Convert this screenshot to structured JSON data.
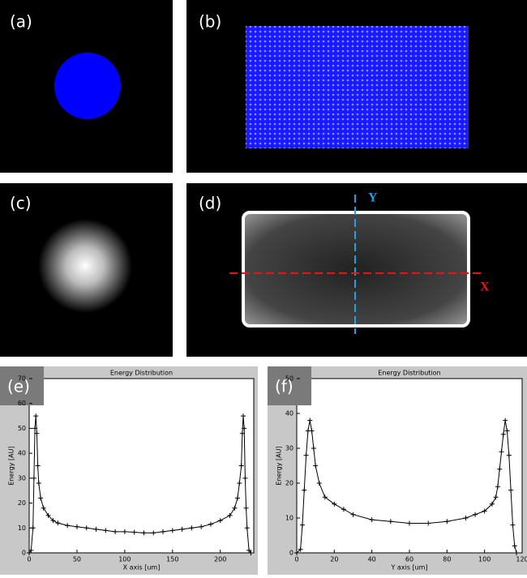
{
  "panels": [
    "(a)",
    "(b)",
    "(c)",
    "(d)"
  ],
  "annotations": {
    "y_line": "Y",
    "x_line": "X"
  },
  "chart_data": [
    {
      "type": "line",
      "panel_label": "(e)",
      "title": "Energy Distribution",
      "x_label": "X axis [um]",
      "y_label": "Energy [AU]",
      "x": [
        0,
        2,
        4,
        5,
        6,
        7,
        8,
        9,
        10,
        12,
        15,
        20,
        25,
        30,
        40,
        50,
        60,
        70,
        80,
        90,
        100,
        110,
        120,
        130,
        140,
        150,
        160,
        170,
        180,
        190,
        200,
        210,
        215,
        218,
        220,
        222,
        223,
        224,
        225,
        226,
        227,
        228,
        230,
        232
      ],
      "values": [
        0,
        1,
        10,
        30,
        50,
        55,
        48,
        35,
        28,
        22,
        18,
        15,
        13,
        12,
        11,
        10.5,
        10,
        9.5,
        9,
        8.5,
        8.5,
        8.3,
        8,
        8,
        8.5,
        9,
        9.5,
        10,
        10.5,
        11.5,
        13,
        15,
        18,
        22,
        28,
        35,
        48,
        55,
        50,
        30,
        18,
        10,
        1,
        0
      ],
      "color": "#000000",
      "xlim": [
        0,
        235
      ],
      "ylim": [
        0,
        70
      ],
      "xticks": [
        0,
        50,
        100,
        150,
        200
      ],
      "yticks": [
        0,
        10,
        20,
        30,
        40,
        50,
        60,
        70
      ]
    },
    {
      "type": "line",
      "panel_label": "(f)",
      "title": "Energy Distribution",
      "x_label": "Y axis [um]",
      "y_label": "Energy [AU]",
      "x": [
        0,
        2,
        3,
        4,
        5,
        6,
        7,
        8,
        9,
        10,
        12,
        15,
        20,
        25,
        30,
        40,
        50,
        60,
        70,
        80,
        90,
        95,
        100,
        104,
        106,
        107,
        108,
        109,
        110,
        111,
        112,
        113,
        114,
        115,
        116,
        117
      ],
      "values": [
        0,
        1,
        8,
        18,
        28,
        35,
        38,
        35,
        30,
        25,
        20,
        16,
        14,
        12.5,
        11,
        9.5,
        9,
        8.5,
        8.5,
        9,
        10,
        11,
        12,
        14,
        16,
        19,
        24,
        29,
        34,
        38,
        35,
        28,
        18,
        8,
        2,
        0
      ],
      "color": "#000000",
      "xlim": [
        0,
        120
      ],
      "ylim": [
        0,
        50
      ],
      "xticks": [
        0,
        20,
        40,
        60,
        80,
        100,
        120
      ],
      "yticks": [
        0,
        10,
        20,
        30,
        40,
        50
      ]
    }
  ]
}
